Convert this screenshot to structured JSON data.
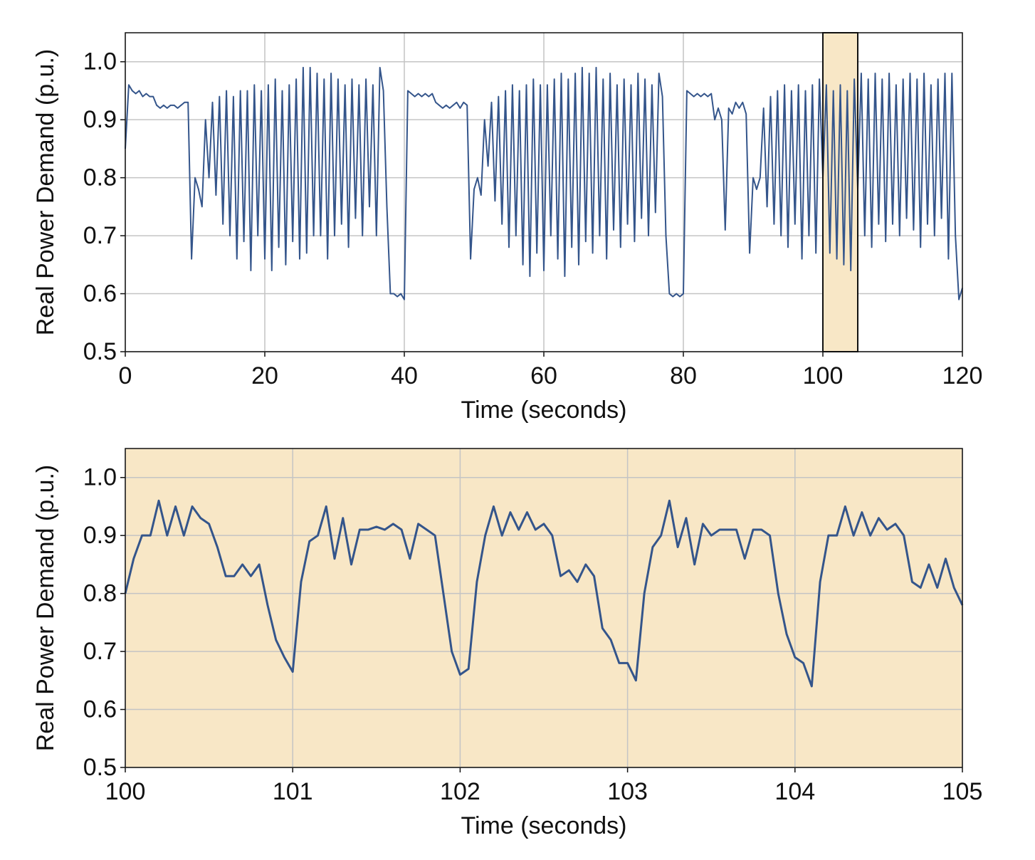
{
  "chart_data": [
    {
      "type": "line",
      "xlabel": "Time (seconds)",
      "ylabel": "Real Power Demand (p.u.)",
      "xlim": [
        0,
        120
      ],
      "ylim": [
        0.5,
        1.05
      ],
      "xticks": [
        0,
        20,
        40,
        60,
        80,
        100,
        120
      ],
      "yticks": [
        0.5,
        0.6,
        0.7,
        0.8,
        0.9,
        {
          "value": 1,
          "label": "1.0"
        }
      ],
      "grid": true,
      "highlight": {
        "xlim": [
          100,
          105
        ],
        "color": "#f8e7c6"
      },
      "x": [
        0,
        0.5,
        1,
        1.5,
        2,
        2.5,
        3,
        3.5,
        4,
        4.5,
        5,
        5.5,
        6,
        6.5,
        7,
        7.5,
        8,
        8.5,
        9,
        9.5,
        10,
        10.5,
        11,
        11.5,
        12,
        12.5,
        13,
        13.5,
        14,
        14.5,
        15,
        15.5,
        16,
        16.5,
        17,
        17.5,
        18,
        18.5,
        19,
        19.5,
        20,
        20.5,
        21,
        21.5,
        22,
        22.5,
        23,
        23.5,
        24,
        24.5,
        25,
        25.5,
        26,
        26.5,
        27,
        27.5,
        28,
        28.5,
        29,
        29.5,
        30,
        30.5,
        31,
        31.5,
        32,
        32.5,
        33,
        33.5,
        34,
        34.5,
        35,
        35.5,
        36,
        36.5,
        37,
        37.5,
        38,
        38.5,
        39,
        39.5,
        40,
        40.5,
        41,
        41.5,
        42,
        42.5,
        43,
        43.5,
        44,
        44.5,
        45,
        45.5,
        46,
        46.5,
        47,
        47.5,
        48,
        48.5,
        49,
        49.5,
        50,
        50.5,
        51,
        51.5,
        52,
        52.5,
        53,
        53.5,
        54,
        54.5,
        55,
        55.5,
        56,
        56.5,
        57,
        57.5,
        58,
        58.5,
        59,
        59.5,
        60,
        60.5,
        61,
        61.5,
        62,
        62.5,
        63,
        63.5,
        64,
        64.5,
        65,
        65.5,
        66,
        66.5,
        67,
        67.5,
        68,
        68.5,
        69,
        69.5,
        70,
        70.5,
        71,
        71.5,
        72,
        72.5,
        73,
        73.5,
        74,
        74.5,
        75,
        75.5,
        76,
        76.5,
        77,
        77.5,
        78,
        78.5,
        79,
        79.5,
        80,
        80.5,
        81,
        81.5,
        82,
        82.5,
        83,
        83.5,
        84,
        84.5,
        85,
        85.5,
        86,
        86.5,
        87,
        87.5,
        88,
        88.5,
        89,
        89.5,
        90,
        90.5,
        91,
        91.5,
        92,
        92.5,
        93,
        93.5,
        94,
        94.5,
        95,
        95.5,
        96,
        96.5,
        97,
        97.5,
        98,
        98.5,
        99,
        99.5,
        100,
        100.5,
        101,
        101.5,
        102,
        102.5,
        103,
        103.5,
        104,
        104.5,
        105,
        105.5,
        106,
        106.5,
        107,
        107.5,
        108,
        108.5,
        109,
        109.5,
        110,
        110.5,
        111,
        111.5,
        112,
        112.5,
        113,
        113.5,
        114,
        114.5,
        115,
        115.5,
        116,
        116.5,
        117,
        117.5,
        118,
        118.5,
        119,
        119.5,
        120
      ],
      "series": [
        {
          "color": "#34558b",
          "values": [
            0.85,
            0.96,
            0.95,
            0.945,
            0.95,
            0.94,
            0.945,
            0.94,
            0.94,
            0.925,
            0.92,
            0.925,
            0.92,
            0.925,
            0.925,
            0.92,
            0.925,
            0.93,
            0.93,
            0.66,
            0.8,
            0.78,
            0.75,
            0.9,
            0.8,
            0.93,
            0.77,
            0.94,
            0.72,
            0.95,
            0.7,
            0.94,
            0.66,
            0.95,
            0.69,
            0.95,
            0.64,
            0.96,
            0.7,
            0.95,
            0.66,
            0.96,
            0.64,
            0.97,
            0.68,
            0.95,
            0.65,
            0.96,
            0.69,
            0.97,
            0.66,
            0.99,
            0.67,
            0.99,
            0.7,
            0.98,
            0.7,
            0.97,
            0.66,
            0.98,
            0.7,
            0.97,
            0.72,
            0.96,
            0.68,
            0.97,
            0.73,
            0.96,
            0.7,
            0.97,
            0.75,
            0.96,
            0.7,
            0.99,
            0.95,
            0.75,
            0.6,
            0.6,
            0.595,
            0.6,
            0.59,
            0.95,
            0.945,
            0.94,
            0.945,
            0.94,
            0.945,
            0.94,
            0.945,
            0.93,
            0.925,
            0.92,
            0.925,
            0.92,
            0.925,
            0.93,
            0.92,
            0.93,
            0.925,
            0.66,
            0.78,
            0.8,
            0.77,
            0.9,
            0.82,
            0.93,
            0.76,
            0.94,
            0.72,
            0.95,
            0.68,
            0.96,
            0.7,
            0.95,
            0.65,
            0.96,
            0.63,
            0.97,
            0.67,
            0.96,
            0.64,
            0.96,
            0.7,
            0.97,
            0.66,
            0.98,
            0.63,
            0.97,
            0.68,
            0.98,
            0.65,
            0.99,
            0.69,
            0.98,
            0.67,
            0.99,
            0.7,
            0.97,
            0.66,
            0.98,
            0.71,
            0.96,
            0.68,
            0.97,
            0.72,
            0.96,
            0.69,
            0.98,
            0.73,
            0.97,
            0.7,
            0.96,
            0.74,
            0.98,
            0.94,
            0.7,
            0.6,
            0.595,
            0.6,
            0.595,
            0.6,
            0.95,
            0.945,
            0.94,
            0.945,
            0.94,
            0.945,
            0.94,
            0.945,
            0.9,
            0.92,
            0.9,
            0.71,
            0.92,
            0.91,
            0.93,
            0.92,
            0.93,
            0.91,
            0.67,
            0.8,
            0.78,
            0.8,
            0.92,
            0.75,
            0.94,
            0.72,
            0.95,
            0.7,
            0.96,
            0.68,
            0.95,
            0.72,
            0.96,
            0.66,
            0.95,
            0.7,
            0.96,
            0.67,
            0.97,
            0.8,
            0.96,
            0.67,
            0.95,
            0.66,
            0.96,
            0.65,
            0.95,
            0.64,
            0.97,
            0.78,
            0.98,
            0.7,
            0.97,
            0.68,
            0.98,
            0.72,
            0.97,
            0.69,
            0.98,
            0.72,
            0.96,
            0.7,
            0.97,
            0.73,
            0.98,
            0.71,
            0.97,
            0.68,
            0.98,
            0.72,
            0.96,
            0.7,
            0.97,
            0.73,
            0.98,
            0.66,
            0.98,
            0.7,
            0.59,
            0.61
          ]
        }
      ]
    },
    {
      "type": "line",
      "xlabel": "Time (seconds)",
      "ylabel": "Real Power Demand (p.u.)",
      "xlim": [
        100,
        105
      ],
      "ylim": [
        0.5,
        1.05
      ],
      "xticks": [
        100,
        101,
        102,
        103,
        104,
        105
      ],
      "yticks": [
        0.5,
        0.6,
        0.7,
        0.8,
        0.9,
        {
          "value": 1,
          "label": "1.0"
        }
      ],
      "grid": true,
      "background": "#f8e7c6",
      "x": [
        100,
        100.05,
        100.1,
        100.15,
        100.2,
        100.25,
        100.3,
        100.35,
        100.4,
        100.45,
        100.5,
        100.55,
        100.6,
        100.65,
        100.7,
        100.75,
        100.8,
        100.85,
        100.9,
        100.95,
        101,
        101.05,
        101.1,
        101.15,
        101.2,
        101.25,
        101.3,
        101.35,
        101.4,
        101.45,
        101.5,
        101.55,
        101.6,
        101.65,
        101.7,
        101.75,
        101.8,
        101.85,
        101.9,
        101.95,
        102,
        102.05,
        102.1,
        102.15,
        102.2,
        102.25,
        102.3,
        102.35,
        102.4,
        102.45,
        102.5,
        102.55,
        102.6,
        102.65,
        102.7,
        102.75,
        102.8,
        102.85,
        102.9,
        102.95,
        103,
        103.05,
        103.1,
        103.15,
        103.2,
        103.25,
        103.3,
        103.35,
        103.4,
        103.45,
        103.5,
        103.55,
        103.6,
        103.65,
        103.7,
        103.75,
        103.8,
        103.85,
        103.9,
        103.95,
        104,
        104.05,
        104.1,
        104.15,
        104.2,
        104.25,
        104.3,
        104.35,
        104.4,
        104.45,
        104.5,
        104.55,
        104.6,
        104.65,
        104.7,
        104.75,
        104.8,
        104.85,
        104.9,
        104.95,
        105
      ],
      "series": [
        {
          "color": "#34558b",
          "values": [
            0.8,
            0.86,
            0.9,
            0.9,
            0.96,
            0.9,
            0.95,
            0.9,
            0.95,
            0.93,
            0.92,
            0.88,
            0.83,
            0.83,
            0.85,
            0.83,
            0.85,
            0.78,
            0.72,
            0.69,
            0.665,
            0.82,
            0.89,
            0.9,
            0.95,
            0.86,
            0.93,
            0.85,
            0.91,
            0.91,
            0.915,
            0.91,
            0.92,
            0.91,
            0.86,
            0.92,
            0.91,
            0.9,
            0.8,
            0.7,
            0.66,
            0.67,
            0.82,
            0.9,
            0.95,
            0.9,
            0.94,
            0.91,
            0.94,
            0.91,
            0.92,
            0.9,
            0.83,
            0.84,
            0.82,
            0.85,
            0.83,
            0.74,
            0.72,
            0.68,
            0.68,
            0.65,
            0.8,
            0.88,
            0.9,
            0.96,
            0.88,
            0.93,
            0.85,
            0.92,
            0.9,
            0.91,
            0.91,
            0.91,
            0.86,
            0.91,
            0.91,
            0.9,
            0.8,
            0.73,
            0.69,
            0.68,
            0.64,
            0.82,
            0.9,
            0.9,
            0.95,
            0.9,
            0.94,
            0.9,
            0.93,
            0.91,
            0.92,
            0.9,
            0.82,
            0.81,
            0.85,
            0.81,
            0.86,
            0.81,
            0.78
          ]
        }
      ]
    }
  ]
}
